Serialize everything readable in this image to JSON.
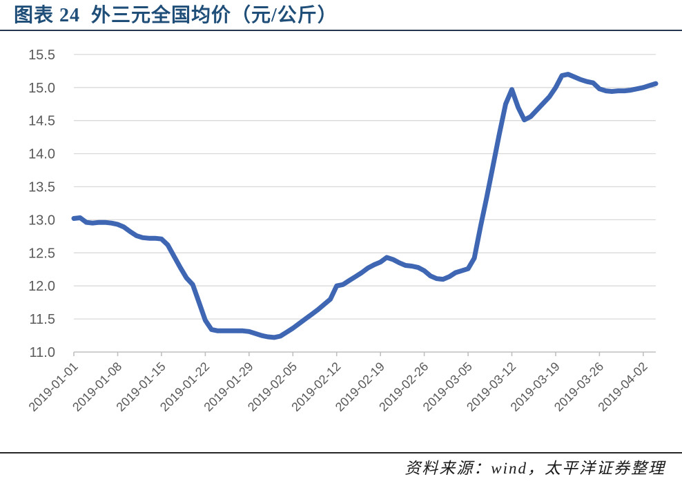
{
  "header": {
    "title": "图表 24  外三元全国均价（元/公斤）"
  },
  "footer": {
    "source": "资料来源：wind，太平洋证券整理"
  },
  "colors": {
    "line": "#3E66B3",
    "title": "#1F4E79",
    "axis_label": "#595959",
    "gridline": "#D9D9D9",
    "axis_line": "#BFBFBF",
    "title_rule": "#23364D",
    "footer_rule": "#262626"
  },
  "chart_data": {
    "type": "line",
    "title": "外三元全国均价（元/公斤）",
    "series_name": "外三元全国均价",
    "unit": "元/公斤",
    "xlabel": "",
    "ylabel": "",
    "ylim": [
      11.0,
      15.5
    ],
    "y_ticks": [
      11.0,
      11.5,
      12.0,
      12.5,
      13.0,
      13.5,
      14.0,
      14.5,
      15.0,
      15.5
    ],
    "grid": "horizontal",
    "legend": "none",
    "x_start": "2019-01-01",
    "x_end": "2019-04-04",
    "x_step_days": 1,
    "x_tick_indices": [
      0,
      7,
      14,
      21,
      28,
      35,
      42,
      49,
      56,
      63,
      70,
      77,
      84,
      91
    ],
    "x_tick_labels": [
      "2019-01-01",
      "2019-01-08",
      "2019-01-15",
      "2019-01-22",
      "2019-01-29",
      "2019-02-05",
      "2019-02-12",
      "2019-02-19",
      "2019-02-26",
      "2019-03-05",
      "2019-03-12",
      "2019-03-19",
      "2019-03-26",
      "2019-04-02"
    ],
    "values": [
      13.02,
      13.03,
      12.96,
      12.95,
      12.96,
      12.96,
      12.95,
      12.93,
      12.89,
      12.82,
      12.76,
      12.73,
      12.72,
      12.72,
      12.71,
      12.62,
      12.45,
      12.28,
      12.12,
      12.02,
      11.75,
      11.48,
      11.34,
      11.32,
      11.32,
      11.32,
      11.32,
      11.32,
      11.31,
      11.28,
      11.25,
      11.23,
      11.22,
      11.24,
      11.3,
      11.36,
      11.43,
      11.5,
      11.57,
      11.64,
      11.72,
      11.8,
      12.0,
      12.02,
      12.08,
      12.14,
      12.2,
      12.27,
      12.32,
      12.36,
      12.43,
      12.4,
      12.35,
      12.31,
      12.3,
      12.28,
      12.23,
      12.15,
      12.11,
      12.1,
      12.14,
      12.2,
      12.23,
      12.26,
      12.42,
      12.9,
      13.35,
      13.82,
      14.3,
      14.75,
      14.97,
      14.7,
      14.51,
      14.56,
      14.66,
      14.76,
      14.86,
      15.0,
      15.18,
      15.2,
      15.16,
      15.12,
      15.09,
      15.07,
      14.98,
      14.95,
      14.94,
      14.95,
      14.95,
      14.96,
      14.98,
      15.0,
      15.03,
      15.06
    ]
  }
}
